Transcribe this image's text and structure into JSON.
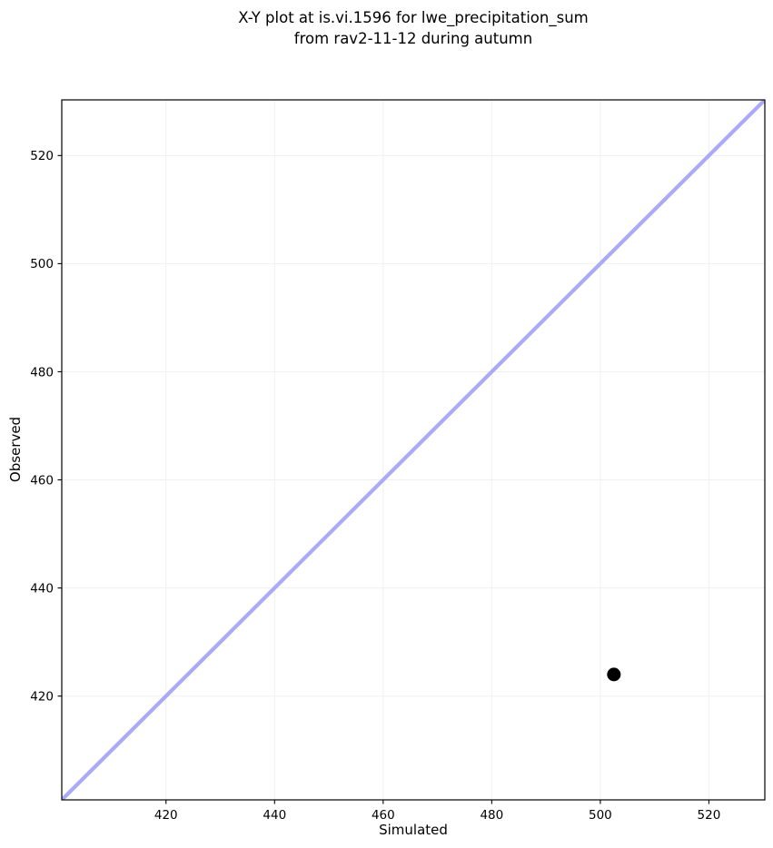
{
  "chart_data": {
    "type": "scatter",
    "title": "X-Y plot at is.vi.1596 for lwe_precipitation_sum\nfrom rav2-11-12 during autumn",
    "xlabel": "Simulated",
    "ylabel": "Observed",
    "xlim": [
      400.8,
      530.3
    ],
    "ylim": [
      400.8,
      530.3
    ],
    "xticks": [
      420,
      440,
      460,
      480,
      500,
      520
    ],
    "yticks": [
      420,
      440,
      460,
      480,
      500,
      520
    ],
    "grid": true,
    "legend": false,
    "points": [
      {
        "x": 502.5,
        "y": 424
      }
    ],
    "identity_line": {
      "kind": "1:1",
      "from": 400.8,
      "to": 530.3
    },
    "colors": {
      "point": "#000000",
      "identity_line": "#aaaaf7",
      "grid": "#f0f0f0",
      "spine": "#000000",
      "background": "#ffffff",
      "text": "#000000"
    }
  }
}
